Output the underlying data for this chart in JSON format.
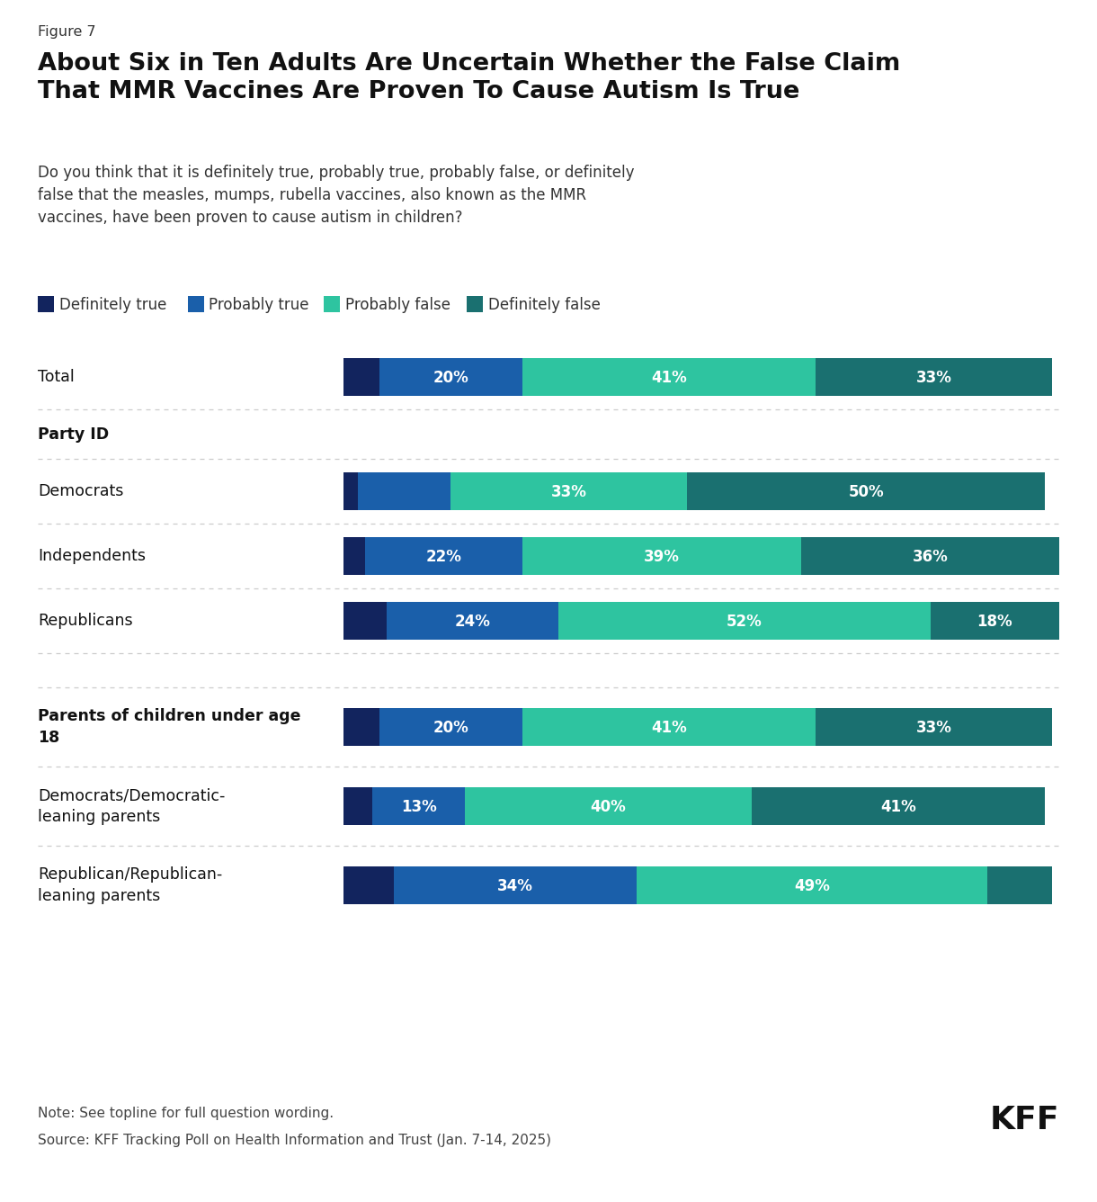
{
  "figure_label": "Figure 7",
  "title": "About Six in Ten Adults Are Uncertain Whether the False Claim\nThat MMR Vaccines Are Proven To Cause Autism Is True",
  "subtitle": "Do you think that it is definitely true, probably true, probably false, or definitely\nfalse that the measles, mumps, rubella vaccines, also known as the MMR\nvaccines, have been proven to cause autism in children?",
  "legend_labels": [
    "Definitely true",
    "Probably true",
    "Probably false",
    "Definitely false"
  ],
  "colors": [
    "#12245e",
    "#1a5faa",
    "#2ec4a0",
    "#1a7070"
  ],
  "rows": [
    {
      "key": "Total",
      "label": "Total",
      "bold": false,
      "header": false,
      "spacer": false
    },
    {
      "key": null,
      "label": "Party ID",
      "bold": true,
      "header": true,
      "spacer": false
    },
    {
      "key": "Democrats",
      "label": "Democrats",
      "bold": false,
      "header": false,
      "spacer": false
    },
    {
      "key": "Independents",
      "label": "Independents",
      "bold": false,
      "header": false,
      "spacer": false
    },
    {
      "key": "Republicans",
      "label": "Republicans",
      "bold": false,
      "header": false,
      "spacer": false
    },
    {
      "key": null,
      "label": "",
      "bold": false,
      "header": false,
      "spacer": true
    },
    {
      "key": "Parents18",
      "label": "Parents of children under age\n18",
      "bold": true,
      "header": true,
      "spacer": false
    },
    {
      "key": "DemParents",
      "label": "Democrats/Democratic-\nleaning parents",
      "bold": false,
      "header": false,
      "spacer": false
    },
    {
      "key": "RepParents",
      "label": "Republican/Republican-\nleaning parents",
      "bold": false,
      "header": false,
      "spacer": false
    }
  ],
  "data": {
    "Total": [
      5,
      20,
      41,
      33
    ],
    "Democrats": [
      2,
      13,
      33,
      50
    ],
    "Independents": [
      3,
      22,
      39,
      36
    ],
    "Republicans": [
      6,
      24,
      52,
      18
    ],
    "Parents18": [
      5,
      20,
      41,
      33
    ],
    "DemParents": [
      4,
      13,
      40,
      41
    ],
    "RepParents": [
      7,
      34,
      49,
      9
    ]
  },
  "show_pct": {
    "Total": [
      false,
      true,
      true,
      true
    ],
    "Democrats": [
      false,
      false,
      true,
      true
    ],
    "Independents": [
      false,
      true,
      true,
      true
    ],
    "Republicans": [
      false,
      true,
      true,
      true
    ],
    "Parents18": [
      false,
      true,
      true,
      true
    ],
    "DemParents": [
      false,
      true,
      true,
      true
    ],
    "RepParents": [
      false,
      true,
      true,
      false
    ]
  },
  "note": "Note: See topline for full question wording.",
  "source": "Source: KFF Tracking Poll on Health Information and Trust (Jan. 7-14, 2025)",
  "bg_color": "#ffffff"
}
